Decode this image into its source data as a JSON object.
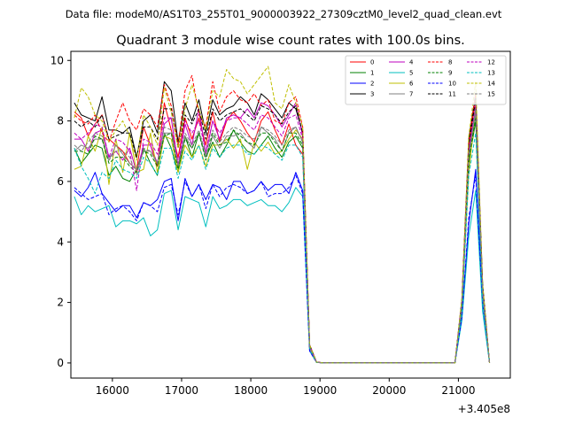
{
  "chart_data": {
    "type": "line",
    "suptitle": "Data file: modeM0/AS1T03_255T01_9000003922_27309cztM0_level2_quad_clean.evt",
    "title": "Quadrant 3 module wise count rates with 100.0s bins.",
    "xlabel": "",
    "ylabel": "",
    "offset_label": "+3.405e8",
    "xlim": [
      15400,
      21750
    ],
    "ylim": [
      -0.5,
      10.3
    ],
    "xticks": [
      16000,
      17000,
      18000,
      19000,
      20000,
      21000
    ],
    "yticks": [
      0,
      2,
      4,
      6,
      8,
      10
    ],
    "grid": false,
    "legend_position": "top-right",
    "legend_columns": 4,
    "x": [
      15450,
      15550,
      15650,
      15750,
      15850,
      15950,
      16050,
      16150,
      16250,
      16350,
      16450,
      16550,
      16650,
      16750,
      16850,
      16950,
      17050,
      17150,
      17250,
      17350,
      17450,
      17550,
      17650,
      17750,
      17850,
      17950,
      18050,
      18150,
      18250,
      18350,
      18450,
      18550,
      18650,
      18750,
      18850,
      18950,
      19050,
      19150,
      19250,
      19350,
      19450,
      19550,
      19650,
      19750,
      19850,
      19950,
      20050,
      20150,
      20250,
      20350,
      20450,
      20550,
      20650,
      20750,
      20850,
      20950,
      21050,
      21150,
      21250,
      21350,
      21450
    ],
    "series": [
      {
        "name": "0",
        "color": "#ff0000",
        "dash": "solid",
        "values": [
          8.3,
          8.1,
          7.5,
          7.9,
          8.2,
          7.4,
          7.2,
          7.0,
          6.6,
          6.4,
          7.8,
          7.2,
          6.5,
          8.6,
          7.7,
          6.8,
          8.1,
          7.4,
          8.1,
          7.2,
          8.3,
          7.3,
          8.0,
          8.3,
          8.0,
          7.6,
          7.3,
          8.0,
          8.3,
          7.7,
          7.2,
          7.9,
          7.2,
          6.9,
          0.58,
          0.03,
          0.0,
          0.0,
          0.0,
          0.0,
          0.0,
          0.0,
          0.0,
          0.0,
          0.0,
          0.0,
          0.0,
          0.0,
          0.0,
          0.0,
          0.0,
          0.0,
          0.0,
          0.0,
          0.0,
          0.0,
          2.0,
          7.2,
          8.8,
          2.5,
          0
        ]
      },
      {
        "name": "1",
        "color": "#008000",
        "dash": "solid",
        "values": [
          7.1,
          6.6,
          6.9,
          7.2,
          7.1,
          6.2,
          6.5,
          6.1,
          6.0,
          6.4,
          7.1,
          6.6,
          6.2,
          7.6,
          7.1,
          6.3,
          7.5,
          6.8,
          7.6,
          6.8,
          7.3,
          6.8,
          7.2,
          7.7,
          7.3,
          7.0,
          6.9,
          7.2,
          7.5,
          7.1,
          6.8,
          7.3,
          7.5,
          7.1,
          0.5,
          0.02,
          0.0,
          0.0,
          0.0,
          0.0,
          0.0,
          0.0,
          0.0,
          0.0,
          0.0,
          0.0,
          0.0,
          0.0,
          0.0,
          0.0,
          0.0,
          0.0,
          0.0,
          0.0,
          0.0,
          0.0,
          1.8,
          6.6,
          8.0,
          2.2,
          0
        ]
      },
      {
        "name": "2",
        "color": "#0000ff",
        "dash": "solid",
        "values": [
          5.7,
          5.5,
          5.8,
          6.3,
          5.6,
          5.3,
          5.0,
          5.2,
          5.2,
          4.8,
          5.3,
          5.2,
          5.4,
          6.0,
          6.1,
          4.7,
          6.1,
          5.5,
          5.9,
          5.4,
          5.9,
          5.8,
          5.4,
          6.0,
          6.0,
          5.6,
          5.7,
          6.0,
          5.7,
          5.9,
          5.9,
          5.6,
          6.3,
          5.7,
          0.4,
          0.02,
          0.0,
          0.0,
          0.0,
          0.0,
          0.0,
          0.0,
          0.0,
          0.0,
          0.0,
          0.0,
          0.0,
          0.0,
          0.0,
          0.0,
          0.0,
          0.0,
          0.0,
          0.0,
          0.0,
          0.0,
          1.5,
          4.6,
          6.4,
          2.0,
          0
        ]
      },
      {
        "name": "3",
        "color": "#000000",
        "dash": "solid",
        "values": [
          8.6,
          8.2,
          8.1,
          8.0,
          8.8,
          7.7,
          7.7,
          7.6,
          7.8,
          6.8,
          8.0,
          8.2,
          7.6,
          9.3,
          9.0,
          7.3,
          8.6,
          8.0,
          8.7,
          7.6,
          8.7,
          8.2,
          8.4,
          8.5,
          8.8,
          8.6,
          8.2,
          8.9,
          8.7,
          8.4,
          8.1,
          8.6,
          8.4,
          7.6,
          0.6,
          0.03,
          0.0,
          0.0,
          0.0,
          0.0,
          0.0,
          0.0,
          0.0,
          0.0,
          0.0,
          0.0,
          0.0,
          0.0,
          0.0,
          0.0,
          0.0,
          0.0,
          0.0,
          0.0,
          0.0,
          0.0,
          2.1,
          7.4,
          8.9,
          2.6,
          0
        ]
      },
      {
        "name": "4",
        "color": "#bf00bf",
        "dash": "solid",
        "values": [
          7.4,
          7.4,
          7.0,
          7.6,
          7.7,
          6.8,
          7.0,
          6.7,
          7.1,
          6.3,
          7.2,
          7.2,
          6.6,
          7.9,
          8.1,
          6.5,
          7.9,
          7.2,
          8.4,
          6.9,
          8.0,
          7.4,
          8.1,
          8.2,
          8.1,
          8.4,
          8.1,
          8.6,
          8.5,
          8.2,
          7.8,
          8.2,
          8.6,
          7.5,
          0.6,
          0.02,
          0.0,
          0.0,
          0.0,
          0.0,
          0.0,
          0.0,
          0.0,
          0.0,
          0.0,
          0.0,
          0.0,
          0.0,
          0.0,
          0.0,
          0.0,
          0.0,
          0.0,
          0.0,
          0.0,
          0.0,
          2.0,
          7.0,
          8.5,
          2.4,
          0
        ]
      },
      {
        "name": "5",
        "color": "#00bfbf",
        "dash": "solid",
        "values": [
          5.5,
          4.9,
          5.2,
          5.0,
          5.1,
          5.2,
          4.5,
          4.7,
          4.7,
          4.6,
          4.8,
          4.2,
          4.4,
          5.6,
          5.7,
          4.4,
          5.5,
          5.4,
          5.3,
          4.5,
          5.5,
          5.1,
          5.2,
          5.4,
          5.4,
          5.2,
          5.3,
          5.4,
          5.2,
          5.2,
          5.0,
          5.3,
          5.8,
          5.5,
          0.4,
          0.02,
          0.0,
          0.0,
          0.0,
          0.0,
          0.0,
          0.0,
          0.0,
          0.0,
          0.0,
          0.0,
          0.0,
          0.0,
          0.0,
          0.0,
          0.0,
          0.0,
          0.0,
          0.0,
          0.0,
          0.0,
          1.4,
          4.2,
          5.7,
          1.7,
          0
        ]
      },
      {
        "name": "6",
        "color": "#bfbf00",
        "dash": "solid",
        "values": [
          6.4,
          6.5,
          7.5,
          7.0,
          7.8,
          5.9,
          7.4,
          6.3,
          7.6,
          6.3,
          6.4,
          7.6,
          6.3,
          7.5,
          7.4,
          6.3,
          7.2,
          6.8,
          7.2,
          6.5,
          7.2,
          7.2,
          7.4,
          7.1,
          7.4,
          6.4,
          7.3,
          7.0,
          7.3,
          6.9,
          7.0,
          7.4,
          7.7,
          7.4,
          0.5,
          0.02,
          0.0,
          0.0,
          0.0,
          0.0,
          0.0,
          0.0,
          0.0,
          0.0,
          0.0,
          0.0,
          0.0,
          0.0,
          0.0,
          0.0,
          0.0,
          0.0,
          0.0,
          0.0,
          0.0,
          0.0,
          1.8,
          6.3,
          8.4,
          2.3,
          0
        ]
      },
      {
        "name": "7",
        "color": "#808080",
        "dash": "solid",
        "values": [
          7.0,
          7.2,
          7.1,
          7.4,
          7.4,
          6.7,
          7.2,
          6.9,
          6.6,
          6.4,
          7.0,
          7.0,
          6.6,
          7.6,
          7.6,
          6.5,
          7.5,
          7.1,
          7.6,
          6.8,
          7.5,
          7.1,
          7.5,
          7.5,
          7.6,
          7.3,
          7.1,
          7.8,
          7.6,
          7.4,
          7.0,
          7.6,
          7.8,
          7.3,
          0.5,
          0.02,
          0.0,
          0.0,
          0.0,
          0.0,
          0.0,
          0.0,
          0.0,
          0.0,
          0.0,
          0.0,
          0.0,
          0.0,
          0.0,
          0.0,
          0.0,
          0.0,
          0.0,
          0.0,
          0.0,
          0.0,
          1.9,
          6.8,
          8.3,
          2.3,
          0
        ]
      },
      {
        "name": "8",
        "color": "#ff0000",
        "dash": "dashed",
        "values": [
          8.2,
          8.0,
          7.9,
          8.2,
          7.6,
          7.3,
          8.0,
          8.6,
          8.0,
          7.7,
          8.4,
          8.2,
          7.8,
          9.2,
          8.5,
          7.2,
          9.0,
          9.5,
          8.2,
          7.8,
          9.3,
          8.3,
          8.8,
          9.0,
          8.7,
          8.6,
          8.9,
          8.5,
          8.7,
          8.0,
          7.9,
          8.6,
          8.8,
          7.8,
          0.6,
          0.03,
          0.0,
          0.0,
          0.0,
          0.0,
          0.0,
          0.0,
          0.0,
          0.0,
          0.0,
          0.0,
          0.0,
          0.0,
          0.0,
          0.0,
          0.0,
          0.0,
          0.0,
          0.0,
          0.0,
          0.0,
          2.0,
          7.3,
          8.9,
          2.5,
          0
        ]
      },
      {
        "name": "9",
        "color": "#008000",
        "dash": "dashed",
        "values": [
          7.0,
          7.0,
          6.9,
          7.5,
          7.4,
          6.6,
          6.8,
          6.8,
          6.5,
          6.3,
          7.0,
          6.9,
          6.5,
          7.5,
          7.6,
          6.4,
          7.4,
          7.1,
          7.6,
          6.7,
          7.6,
          7.2,
          7.3,
          7.7,
          7.5,
          7.3,
          7.2,
          7.6,
          7.6,
          7.3,
          7.0,
          7.6,
          7.6,
          7.2,
          0.5,
          0.02,
          0.0,
          0.0,
          0.0,
          0.0,
          0.0,
          0.0,
          0.0,
          0.0,
          0.0,
          0.0,
          0.0,
          0.0,
          0.0,
          0.0,
          0.0,
          0.0,
          0.0,
          0.0,
          0.0,
          0.0,
          1.8,
          6.7,
          8.1,
          2.2,
          0
        ]
      },
      {
        "name": "10",
        "color": "#0000ff",
        "dash": "dashed",
        "values": [
          5.8,
          5.6,
          5.4,
          5.5,
          5.6,
          4.9,
          5.1,
          5.2,
          5.0,
          4.7,
          5.3,
          5.2,
          5.0,
          5.8,
          5.9,
          4.9,
          6.0,
          5.5,
          5.9,
          5.1,
          5.9,
          5.5,
          5.8,
          5.9,
          5.8,
          5.6,
          5.7,
          6.0,
          5.5,
          5.6,
          5.6,
          5.8,
          6.2,
          5.6,
          0.4,
          0.02,
          0.0,
          0.0,
          0.0,
          0.0,
          0.0,
          0.0,
          0.0,
          0.0,
          0.0,
          0.0,
          0.0,
          0.0,
          0.0,
          0.0,
          0.0,
          0.0,
          0.0,
          0.0,
          0.0,
          0.0,
          1.5,
          4.8,
          6.2,
          2.0,
          0
        ]
      },
      {
        "name": "11",
        "color": "#000000",
        "dash": "dashed",
        "values": [
          8.0,
          7.8,
          8.0,
          7.8,
          8.2,
          7.4,
          7.5,
          7.6,
          7.6,
          6.8,
          7.8,
          7.8,
          7.4,
          8.4,
          8.4,
          7.1,
          8.2,
          7.9,
          8.4,
          7.4,
          8.4,
          8.0,
          8.2,
          8.3,
          8.4,
          8.2,
          8.0,
          8.5,
          8.4,
          8.2,
          7.9,
          8.3,
          8.5,
          7.6,
          0.6,
          0.03,
          0.0,
          0.0,
          0.0,
          0.0,
          0.0,
          0.0,
          0.0,
          0.0,
          0.0,
          0.0,
          0.0,
          0.0,
          0.0,
          0.0,
          0.0,
          0.0,
          0.0,
          0.0,
          0.0,
          0.0,
          2.0,
          7.2,
          8.7,
          2.5,
          0
        ]
      },
      {
        "name": "12",
        "color": "#bf00bf",
        "dash": "dashed",
        "values": [
          7.6,
          7.4,
          7.6,
          7.9,
          7.8,
          6.8,
          7.4,
          7.3,
          7.0,
          5.7,
          7.4,
          7.3,
          6.9,
          8.1,
          8.1,
          6.6,
          8.0,
          7.6,
          8.0,
          7.0,
          8.0,
          7.6,
          8.0,
          8.1,
          8.1,
          7.9,
          7.7,
          8.2,
          8.1,
          7.8,
          7.5,
          8.1,
          8.2,
          7.4,
          0.6,
          0.02,
          0.0,
          0.0,
          0.0,
          0.0,
          0.0,
          0.0,
          0.0,
          0.0,
          0.0,
          0.0,
          0.0,
          0.0,
          0.0,
          0.0,
          0.0,
          0.0,
          0.0,
          0.0,
          0.0,
          0.0,
          2.0,
          7.0,
          8.5,
          2.4,
          0
        ]
      },
      {
        "name": "13",
        "color": "#00bfbf",
        "dash": "dashed",
        "values": [
          7.1,
          6.5,
          6.1,
          5.6,
          6.3,
          6.1,
          6.7,
          6.4,
          6.3,
          6.1,
          6.8,
          6.6,
          6.2,
          7.1,
          7.1,
          6.1,
          7.0,
          6.7,
          7.2,
          6.4,
          7.1,
          6.8,
          7.1,
          7.2,
          7.2,
          6.9,
          6.9,
          7.2,
          7.1,
          6.9,
          6.7,
          7.2,
          7.2,
          6.8,
          0.5,
          0.02,
          0.0,
          0.0,
          0.0,
          0.0,
          0.0,
          0.0,
          0.0,
          0.0,
          0.0,
          0.0,
          0.0,
          0.0,
          0.0,
          0.0,
          0.0,
          0.0,
          0.0,
          0.0,
          0.0,
          0.0,
          1.7,
          6.2,
          7.6,
          2.1,
          0
        ]
      },
      {
        "name": "14",
        "color": "#bfbf00",
        "dash": "dashed",
        "values": [
          8.1,
          9.1,
          8.8,
          8.2,
          8.0,
          7.3,
          7.7,
          8.0,
          7.5,
          6.7,
          8.2,
          7.8,
          7.2,
          9.1,
          8.3,
          7.1,
          8.4,
          9.2,
          8.4,
          7.7,
          9.0,
          8.8,
          9.7,
          9.4,
          9.3,
          8.9,
          9.2,
          9.5,
          9.8,
          8.6,
          8.4,
          9.2,
          8.6,
          7.8,
          0.6,
          0.03,
          0.0,
          0.0,
          0.0,
          0.0,
          0.0,
          0.0,
          0.0,
          0.0,
          0.0,
          0.0,
          0.0,
          0.0,
          0.0,
          0.0,
          0.0,
          0.0,
          0.0,
          0.0,
          0.0,
          0.0,
          2.1,
          7.5,
          9.3,
          2.6,
          0
        ]
      },
      {
        "name": "15",
        "color": "#808080",
        "dash": "dashed",
        "values": [
          7.2,
          7.0,
          7.3,
          7.6,
          7.5,
          6.7,
          7.0,
          7.0,
          6.8,
          6.2,
          7.1,
          7.0,
          6.6,
          7.8,
          7.7,
          6.5,
          7.6,
          7.2,
          7.7,
          6.9,
          7.7,
          7.3,
          7.6,
          7.8,
          7.7,
          7.5,
          7.4,
          7.8,
          7.7,
          7.5,
          7.2,
          7.7,
          7.8,
          7.3,
          0.5,
          0.02,
          0.0,
          0.0,
          0.0,
          0.0,
          0.0,
          0.0,
          0.0,
          0.0,
          0.0,
          0.0,
          0.0,
          0.0,
          0.0,
          0.0,
          0.0,
          0.0,
          0.0,
          0.0,
          0.0,
          0.0,
          1.9,
          6.9,
          8.4,
          2.3,
          0
        ]
      }
    ]
  }
}
